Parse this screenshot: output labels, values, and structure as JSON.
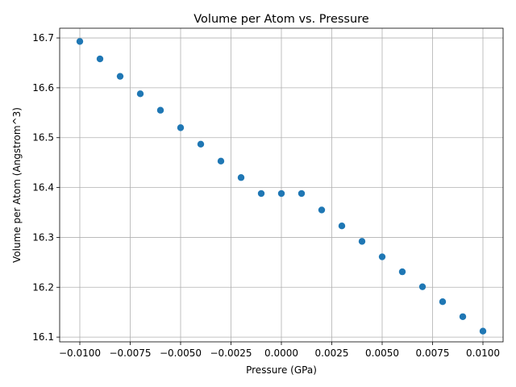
{
  "chart_data": {
    "type": "scatter",
    "title": "Volume per Atom vs. Pressure",
    "xlabel": "Pressure (GPa)",
    "ylabel": "Volume per Atom (Angstrom^3)",
    "xlim": [
      -0.011,
      0.011
    ],
    "ylim": [
      16.0905,
      16.7195
    ],
    "grid": true,
    "marker_color": "#1f77b4",
    "x_ticks": [
      -0.01,
      -0.0075,
      -0.005,
      -0.0025,
      0.0,
      0.0025,
      0.005,
      0.0075,
      0.01
    ],
    "x_tick_labels": [
      "−0.0100",
      "−0.0075",
      "−0.0050",
      "−0.0025",
      "0.0000",
      "0.0025",
      "0.0050",
      "0.0075",
      "0.0100"
    ],
    "y_ticks": [
      16.1,
      16.2,
      16.3,
      16.4,
      16.5,
      16.6,
      16.7
    ],
    "y_tick_labels": [
      "16.1",
      "16.2",
      "16.3",
      "16.4",
      "16.5",
      "16.6",
      "16.7"
    ],
    "x": [
      -0.01,
      -0.009,
      -0.008,
      -0.007,
      -0.006,
      -0.005,
      -0.004,
      -0.003,
      -0.002,
      -0.001,
      0.0,
      0.001,
      0.002,
      0.003,
      0.004,
      0.005,
      0.006,
      0.007,
      0.008,
      0.009,
      0.01
    ],
    "y": [
      16.693,
      16.658,
      16.623,
      16.588,
      16.555,
      16.52,
      16.487,
      16.453,
      16.42,
      16.388,
      16.388,
      16.388,
      16.355,
      16.323,
      16.292,
      16.261,
      16.231,
      16.201,
      16.171,
      16.141,
      16.112
    ]
  }
}
